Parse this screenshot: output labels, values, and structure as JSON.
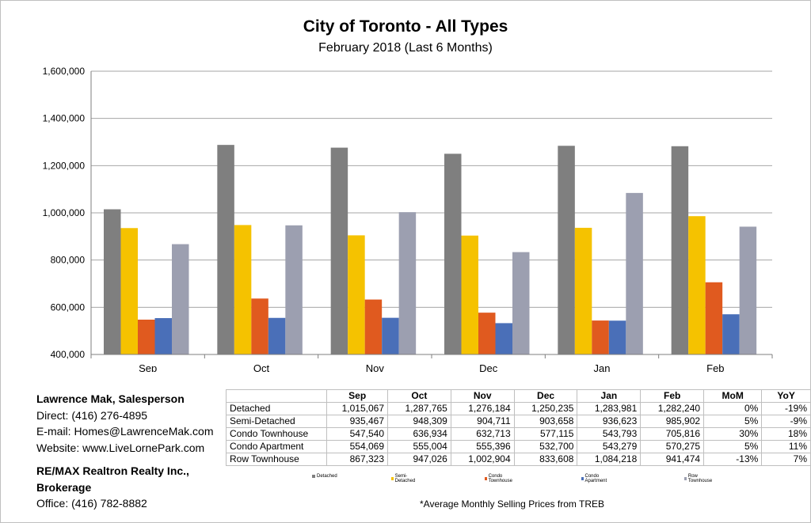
{
  "chart_data": {
    "type": "bar",
    "title": "City of Toronto - All Types",
    "subtitle": "February 2018 (Last 6 Months)",
    "categories": [
      "Sep",
      "Oct",
      "Nov",
      "Dec",
      "Jan",
      "Feb"
    ],
    "ylim": [
      400000,
      1600000
    ],
    "yticks": [
      400000,
      600000,
      800000,
      1000000,
      1200000,
      1400000,
      1600000
    ],
    "ytick_labels": [
      "400,000",
      "600,000",
      "800,000",
      "1,000,000",
      "1,200,000",
      "1,400,000",
      "1,600,000"
    ],
    "grid": true,
    "series": [
      {
        "name": "Detached",
        "color": "#7f7f7f",
        "values": [
          1015067,
          1287765,
          1276184,
          1250235,
          1283981,
          1282240
        ]
      },
      {
        "name": "Semi-Detached",
        "color": "#f5c200",
        "values": [
          935467,
          948309,
          904711,
          903658,
          936623,
          985902
        ]
      },
      {
        "name": "Condo Townhouse",
        "color": "#e05a1f",
        "values": [
          547540,
          636934,
          632713,
          577115,
          543793,
          705816
        ]
      },
      {
        "name": "Condo Apartment",
        "color": "#4a6fb8",
        "values": [
          554069,
          555004,
          555396,
          532700,
          543279,
          570275
        ]
      },
      {
        "name": "Row Townhouse",
        "color": "#9c9fb0",
        "values": [
          867323,
          947026,
          1002904,
          833608,
          1084218,
          941474
        ]
      }
    ]
  },
  "table": {
    "headers": [
      "",
      "Sep",
      "Oct",
      "Nov",
      "Dec",
      "Jan",
      "Feb",
      "MoM",
      "YoY"
    ],
    "rows": [
      [
        "Detached",
        "1,015,067",
        "1,287,765",
        "1,276,184",
        "1,250,235",
        "1,283,981",
        "1,282,240",
        "0%",
        "-19%"
      ],
      [
        "Semi-Detached",
        "935,467",
        "948,309",
        "904,711",
        "903,658",
        "936,623",
        "985,902",
        "5%",
        "-9%"
      ],
      [
        "Condo Townhouse",
        "547,540",
        "636,934",
        "632,713",
        "577,115",
        "543,793",
        "705,816",
        "30%",
        "18%"
      ],
      [
        "Condo Apartment",
        "554,069",
        "555,004",
        "555,396",
        "532,700",
        "543,279",
        "570,275",
        "5%",
        "11%"
      ],
      [
        "Row Townhouse",
        "867,323",
        "947,026",
        "1,002,904",
        "833,608",
        "1,084,218",
        "941,474",
        "-13%",
        "7%"
      ]
    ]
  },
  "contact": {
    "name": "Lawrence Mak, Salesperson",
    "direct": "Direct:  (416) 276-4895",
    "email": "E-mail:  Homes@LawrenceMak.com",
    "website": "Website: www.LiveLornePark.com",
    "brokerage": "RE/MAX Realtron Realty Inc., Brokerage",
    "office": "Office: (416) 782-8882"
  },
  "footnote": "*Average Monthly Selling Prices  from TREB"
}
